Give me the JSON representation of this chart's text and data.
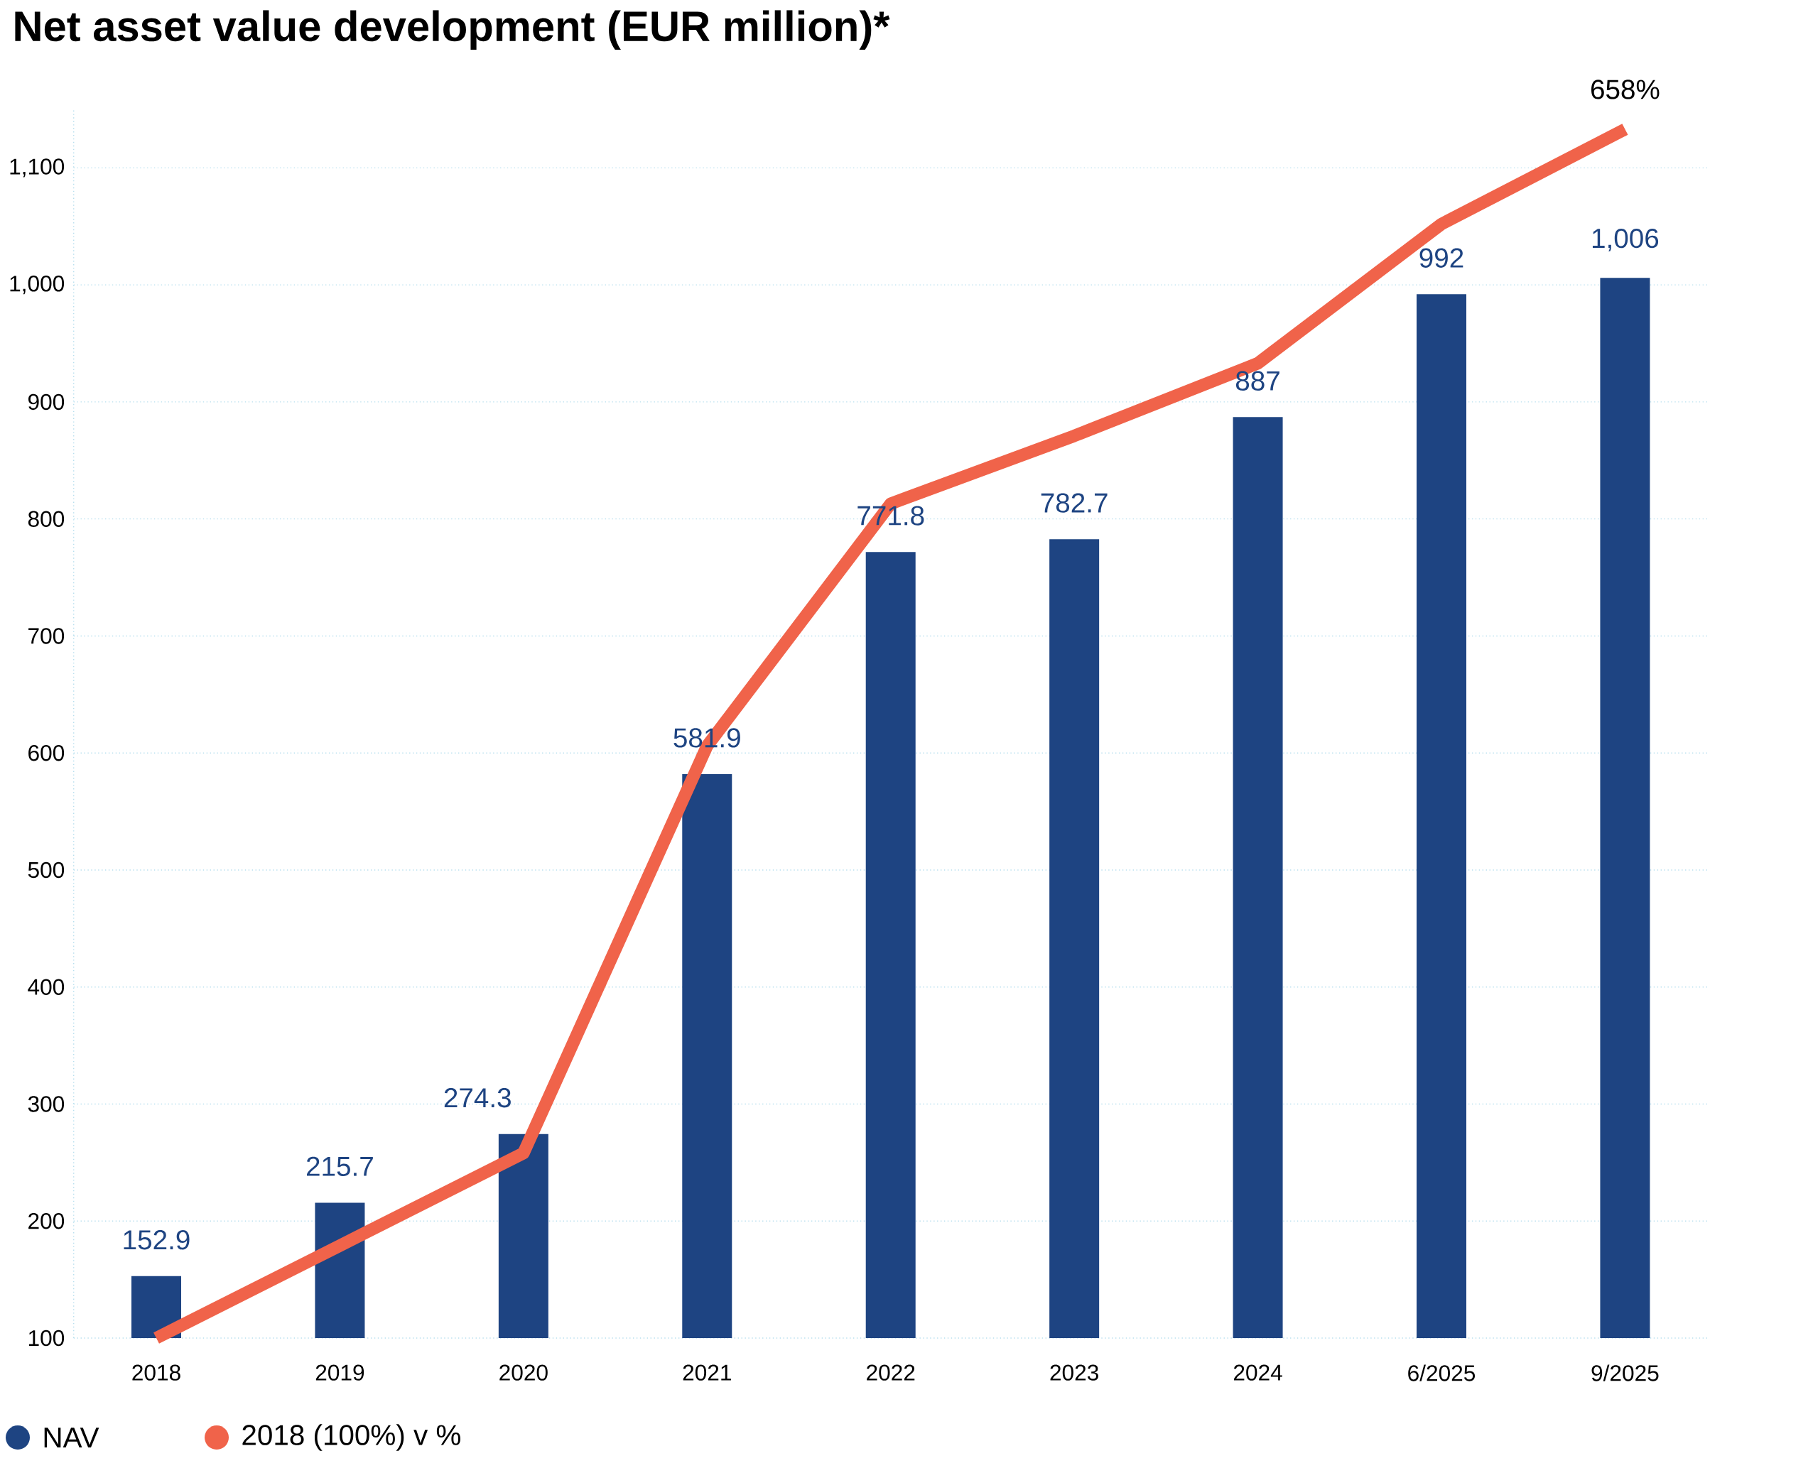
{
  "chart_data": {
    "type": "bar",
    "title": "Net asset value development (EUR million)*",
    "categories": [
      "2018",
      "2019",
      "2020",
      "2021",
      "2022",
      "2023",
      "2024",
      "6/2025",
      "9/2025"
    ],
    "series": [
      {
        "name": "NAV",
        "color": "#1e4482",
        "values": [
          152.9,
          215.7,
          274.3,
          581.9,
          771.8,
          782.7,
          887,
          992,
          1006
        ],
        "value_labels": [
          "152.9",
          "215.7",
          "274.3",
          "581.9",
          "771.8",
          "782.7",
          "887",
          "992",
          "1,006"
        ]
      },
      {
        "name": "2018 (100%) v %",
        "type": "line",
        "color": "#f0634a",
        "values": [
          100,
          179,
          258,
          606,
          813,
          871,
          933,
          1052,
          1133
        ]
      }
    ],
    "ylim": [
      100,
      1150
    ],
    "yticks": [
      100,
      200,
      300,
      400,
      500,
      600,
      700,
      800,
      900,
      {
        "value": 1000,
        "label": "1,000"
      },
      {
        "value": 1100,
        "label": "1,100"
      }
    ],
    "annotations": [
      {
        "text": "658%",
        "x": "9/2025",
        "y": 1133
      }
    ],
    "grid": "y",
    "legend": "bottom left"
  }
}
